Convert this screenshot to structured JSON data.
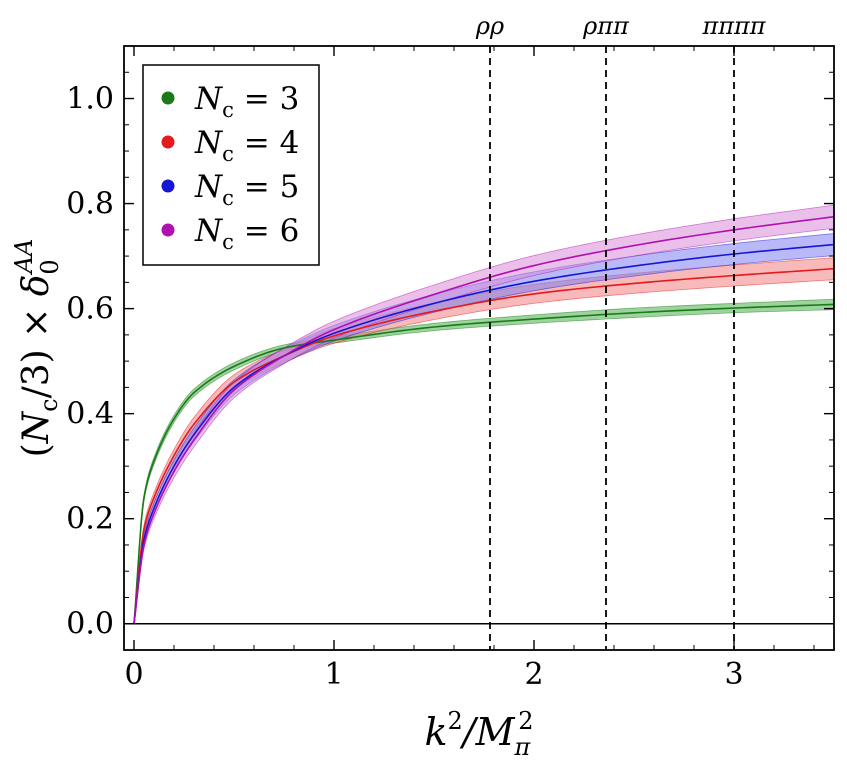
{
  "chart_data": {
    "type": "line",
    "title": "",
    "xlabel_parts": [
      "k",
      "2",
      "/M",
      "π",
      "2"
    ],
    "ylabel_parts": [
      "(N",
      "c",
      "/3) × δ",
      "0",
      "AA"
    ],
    "xlim": [
      -0.05,
      3.5
    ],
    "ylim": [
      -0.05,
      1.1
    ],
    "x_ticks": [
      0,
      1,
      2,
      3
    ],
    "x_tick_labels": [
      "0",
      "1",
      "2",
      "3"
    ],
    "y_ticks": [
      0.0,
      0.2,
      0.4,
      0.6,
      0.8,
      1.0
    ],
    "y_tick_labels": [
      "0.0",
      "0.2",
      "0.4",
      "0.6",
      "0.8",
      "1.0"
    ],
    "grid": false,
    "legend_position": "top-left",
    "series": [
      {
        "name": "N_c = 3",
        "label_main": "N",
        "label_sub": "c",
        "label_eq": " = 3",
        "color": "#1a7a1a",
        "band": "#4caf4c",
        "x": [
          0,
          0.05,
          0.1,
          0.2,
          0.3,
          0.5,
          0.75,
          1.0,
          1.5,
          2.0,
          2.5,
          3.0,
          3.5
        ],
        "y": [
          0,
          0.24,
          0.31,
          0.39,
          0.44,
          0.49,
          0.525,
          0.54,
          0.565,
          0.58,
          0.592,
          0.601,
          0.608
        ],
        "band_halfwidth": [
          0,
          0.006,
          0.007,
          0.007,
          0.007,
          0.007,
          0.006,
          0.006,
          0.007,
          0.008,
          0.009,
          0.009,
          0.01
        ]
      },
      {
        "name": "N_c = 4",
        "label_main": "N",
        "label_sub": "c",
        "label_eq": " = 4",
        "color": "#e41a1c",
        "band": "#f08080",
        "x": [
          0,
          0.05,
          0.1,
          0.2,
          0.3,
          0.5,
          0.75,
          1.0,
          1.5,
          2.0,
          2.5,
          3.0,
          3.5
        ],
        "y": [
          0,
          0.18,
          0.24,
          0.32,
          0.38,
          0.46,
          0.51,
          0.548,
          0.595,
          0.628,
          0.648,
          0.663,
          0.676
        ],
        "band_halfwidth": [
          0,
          0.008,
          0.01,
          0.012,
          0.013,
          0.014,
          0.013,
          0.014,
          0.016,
          0.018,
          0.019,
          0.02,
          0.021
        ]
      },
      {
        "name": "N_c = 5",
        "label_main": "N",
        "label_sub": "c",
        "label_eq": " = 5",
        "color": "#1515d6",
        "band": "#8080f0",
        "x": [
          0,
          0.05,
          0.1,
          0.2,
          0.3,
          0.5,
          0.75,
          1.0,
          1.5,
          2.0,
          2.5,
          3.0,
          3.5
        ],
        "y": [
          0,
          0.16,
          0.22,
          0.3,
          0.36,
          0.45,
          0.51,
          0.553,
          0.61,
          0.652,
          0.681,
          0.704,
          0.722
        ],
        "band_halfwidth": [
          0,
          0.008,
          0.01,
          0.012,
          0.013,
          0.014,
          0.014,
          0.015,
          0.017,
          0.018,
          0.019,
          0.02,
          0.021
        ]
      },
      {
        "name": "N_c = 6",
        "label_main": "N",
        "label_sub": "c",
        "label_eq": " = 6",
        "color": "#b010b0",
        "band": "#d98cd9",
        "x": [
          0,
          0.05,
          0.1,
          0.2,
          0.3,
          0.5,
          0.75,
          1.0,
          1.5,
          2.0,
          2.5,
          3.0,
          3.5
        ],
        "y": [
          0,
          0.15,
          0.21,
          0.29,
          0.35,
          0.445,
          0.51,
          0.56,
          0.627,
          0.682,
          0.72,
          0.75,
          0.775
        ],
        "band_halfwidth": [
          0,
          0.008,
          0.01,
          0.012,
          0.013,
          0.015,
          0.015,
          0.016,
          0.018,
          0.019,
          0.02,
          0.021,
          0.022
        ]
      }
    ],
    "vertical_lines": [
      {
        "x": 1.78,
        "label": "ρρ"
      },
      {
        "x": 2.36,
        "label": "ρππ"
      },
      {
        "x": 3.0,
        "label": "ππππ"
      }
    ],
    "horizontal_line": {
      "y": 0.0
    }
  }
}
